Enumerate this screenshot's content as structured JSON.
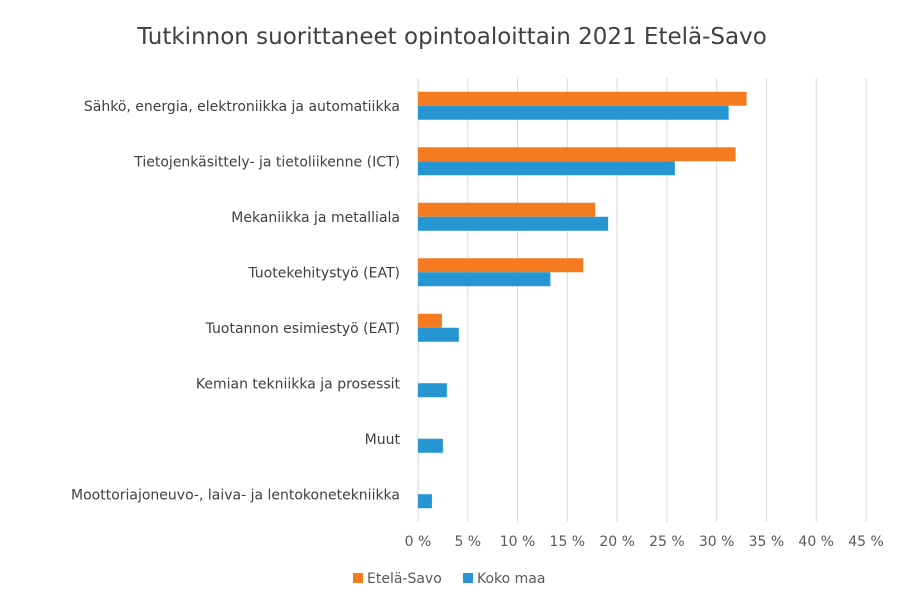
{
  "chart_data": {
    "type": "bar",
    "orientation": "horizontal",
    "title": "Tutkinnon suorittaneet opintoaloittain 2021 Etelä-Savo",
    "categories": [
      "Sähkö, energia, elektroniikka ja automatiikka",
      "Tietojenkäsittely- ja tietoliikenne (ICT)",
      "Mekaniikka ja metalliala",
      "Tuotekehitystyö (EAT)",
      "Tuotannon esimiestyö (EAT)",
      "Kemian tekniikka ja prosessit",
      "Muut",
      "Moottoriajoneuvo-, laiva- ja lentokonetekniikka"
    ],
    "series": [
      {
        "name": "Etelä-Savo",
        "color": "#F47B20",
        "values": [
          33.0,
          31.9,
          17.8,
          16.6,
          2.4,
          0,
          0,
          0
        ]
      },
      {
        "name": "Koko maa",
        "color": "#2596D2",
        "values": [
          31.2,
          25.8,
          19.1,
          13.3,
          4.1,
          2.9,
          2.5,
          1.4
        ]
      }
    ],
    "xlim": [
      0,
      45
    ],
    "xticks": [
      0,
      5,
      10,
      15,
      20,
      25,
      30,
      35,
      40,
      45
    ],
    "tick_labels": [
      "0 %",
      "5 %",
      "10 %",
      "15 %",
      "20 %",
      "25 %",
      "30 %",
      "35 %",
      "40 %",
      "45 %"
    ],
    "grid": true,
    "legend_position": "bottom"
  }
}
